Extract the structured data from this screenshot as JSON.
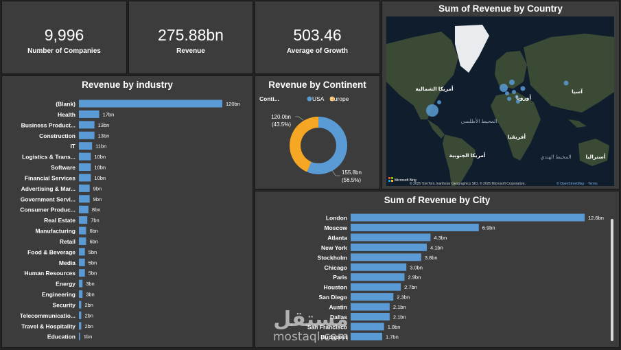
{
  "kpis": [
    {
      "value": "9,996",
      "label": "Number of Companies"
    },
    {
      "value": "275.88bn",
      "label": "Revenue"
    },
    {
      "value": "503.46",
      "label": "Average of Growth"
    }
  ],
  "map": {
    "title": "Sum of Revenue by Country",
    "labels": {
      "north_america": "أمريكا الشمالية",
      "europe": "أوروبا",
      "asia": "آسيا",
      "atlantic": "المحيط الأطلسي",
      "africa": "أفريقيا",
      "south_america": "أمريكا الجنوبية",
      "indian_ocean": "المحيط الهندي",
      "australia": "أستراليا"
    },
    "bing_label": "Microsoft Bing",
    "copyright": "© 2025 TomTom, Earthstar Geographics SIO, © 2025 Microsoft Corporation,",
    "osm": "© OpenStreetMap",
    "terms": "Terms",
    "colors": {
      "land": "#3a4a35",
      "ocean": "#0f1d2d",
      "bubble": "#5b9bd5",
      "ice": "#e8ecef"
    }
  },
  "watermark": {
    "arabic": "مستقل",
    "english": "mostaql.com"
  },
  "chart_data": [
    {
      "type": "bar",
      "orientation": "horizontal",
      "title": "Revenue by industry",
      "categories": [
        "(Blank)",
        "Health",
        "Business Product...",
        "Construction",
        "IT",
        "Logistics & Trans...",
        "Software",
        "Financial Services",
        "Advertising & Mar...",
        "Government Servi...",
        "Consumer Produc...",
        "Real Estate",
        "Manufacturing",
        "Retail",
        "Food & Beverage",
        "Media",
        "Human Resources",
        "Energy",
        "Engineering",
        "Security",
        "Telecommunicatio...",
        "Travel & Hospitality",
        "Education"
      ],
      "values": [
        120,
        17,
        13,
        13,
        11,
        10,
        10,
        10,
        9,
        9,
        8,
        7,
        6,
        6,
        5,
        5,
        5,
        3,
        3,
        2,
        2,
        2,
        1
      ],
      "data_labels": [
        "120bn",
        "17bn",
        "13bn",
        "13bn",
        "11bn",
        "10bn",
        "10bn",
        "10bn",
        "9bn",
        "9bn",
        "8bn",
        "7bn",
        "6bn",
        "6bn",
        "5bn",
        "5bn",
        "5bn",
        "3bn",
        "3bn",
        "2bn",
        "2bn",
        "2bn",
        "1bn"
      ],
      "unit": "bn",
      "xlim": [
        0,
        120
      ],
      "color": "#5b9bd5"
    },
    {
      "type": "pie",
      "subtype": "donut",
      "title": "Revenue by Continent",
      "legend_title": "Conti...",
      "categories": [
        "USA",
        "Europe"
      ],
      "values": [
        155.8,
        120.0
      ],
      "value_labels": [
        "155.8bn",
        "120.0bn"
      ],
      "percent_labels": [
        "(56.5%)",
        "(43.5%)"
      ],
      "colors": [
        "#5b9bd5",
        "#f5a623"
      ]
    },
    {
      "type": "bar",
      "orientation": "horizontal",
      "title": "Sum of Revenue by City",
      "categories": [
        "London",
        "Moscow",
        "Atlanta",
        "New York",
        "Stockholm",
        "Chicago",
        "Paris",
        "Houston",
        "San Diego",
        "Austin",
        "Dallas",
        "San Francisco",
        "Budapest"
      ],
      "values": [
        12.6,
        6.9,
        4.3,
        4.1,
        3.8,
        3.0,
        2.9,
        2.7,
        2.3,
        2.1,
        2.1,
        1.8,
        1.7
      ],
      "data_labels": [
        "12.6bn",
        "6.9bn",
        "4.3bn",
        "4.1bn",
        "3.8bn",
        "3.0bn",
        "2.9bn",
        "2.7bn",
        "2.3bn",
        "2.1bn",
        "2.1bn",
        "1.8bn",
        "1.7bn"
      ],
      "unit": "bn",
      "xlim": [
        0,
        12.6
      ],
      "color": "#5b9bd5"
    }
  ]
}
